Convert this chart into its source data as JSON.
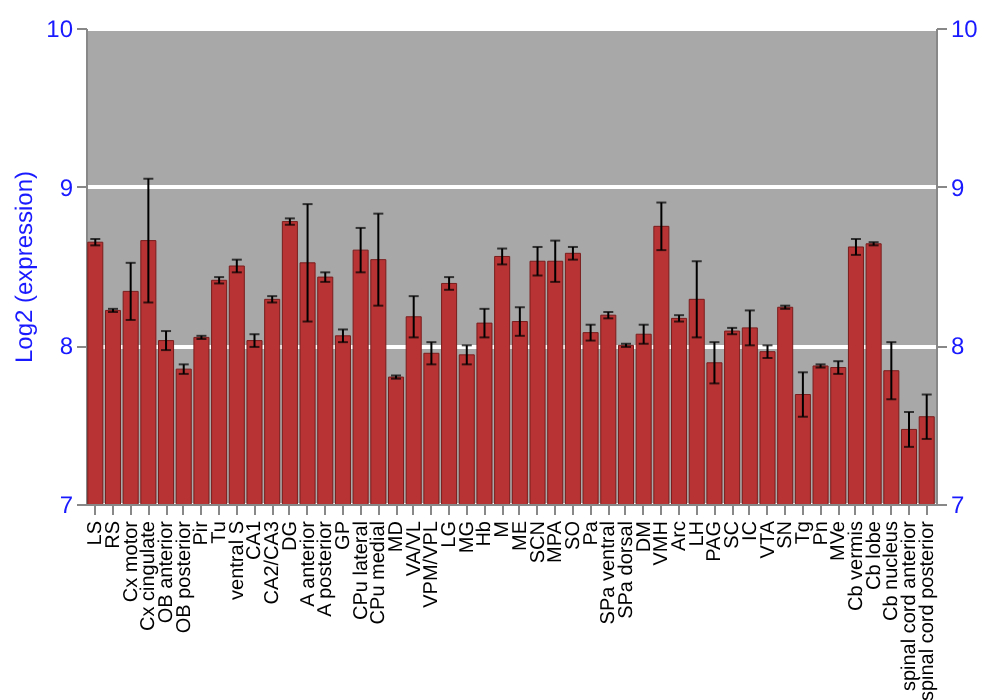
{
  "chart_data": {
    "type": "bar",
    "ylabel": "Log2 (expression)",
    "categories": [
      "LS",
      "RS",
      "Cx motor",
      "Cx cingulate",
      "OB anterior",
      "OB posterior",
      "Pir",
      "Tu",
      "ventral S",
      "CA1",
      "CA2/CA3",
      "DG",
      "A anterior",
      "A posterior",
      "GP",
      "CPu lateral",
      "CPu medial",
      "MD",
      "VA/VL",
      "VPM/VPL",
      "LG",
      "MG",
      "Hb",
      "M",
      "ME",
      "SCN",
      "MPA",
      "SO",
      "Pa",
      "SPa ventral",
      "SPa dorsal",
      "DM",
      "VMH",
      "Arc",
      "LH",
      "PAG",
      "SC",
      "IC",
      "VTA",
      "SN",
      "Tg",
      "Pn",
      "MVe",
      "Cb vermis",
      "Cb lobe",
      "Cb nucleus",
      "spinal cord anterior",
      "spinal cord posterior"
    ],
    "values": [
      8.65,
      8.22,
      8.34,
      8.66,
      8.03,
      7.85,
      8.05,
      8.41,
      8.5,
      8.03,
      8.29,
      8.78,
      8.52,
      8.43,
      8.06,
      8.6,
      8.54,
      7.8,
      8.18,
      7.95,
      8.39,
      7.94,
      8.14,
      8.56,
      8.15,
      8.53,
      8.53,
      8.58,
      8.08,
      8.19,
      8.0,
      8.07,
      8.75,
      8.17,
      8.29,
      7.89,
      8.09,
      8.11,
      7.96,
      8.24,
      7.69,
      7.87,
      7.86,
      8.62,
      8.64,
      7.84,
      7.47,
      7.55
    ],
    "errors": [
      0.02,
      0.01,
      0.18,
      0.39,
      0.06,
      0.03,
      0.01,
      0.02,
      0.04,
      0.04,
      0.02,
      0.02,
      0.37,
      0.03,
      0.04,
      0.14,
      0.29,
      0.01,
      0.13,
      0.07,
      0.04,
      0.06,
      0.09,
      0.05,
      0.09,
      0.09,
      0.13,
      0.04,
      0.05,
      0.02,
      0.01,
      0.06,
      0.15,
      0.02,
      0.24,
      0.13,
      0.02,
      0.11,
      0.04,
      0.01,
      0.14,
      0.01,
      0.04,
      0.05,
      0.01,
      0.18,
      0.11,
      0.14
    ],
    "color": "#b83434",
    "ylim": [
      7,
      10
    ],
    "yticks": [
      7,
      8,
      9,
      10
    ],
    "y2lim": [
      7,
      10
    ],
    "y2ticks": [
      7,
      8,
      9,
      10
    ],
    "grid": "y"
  }
}
